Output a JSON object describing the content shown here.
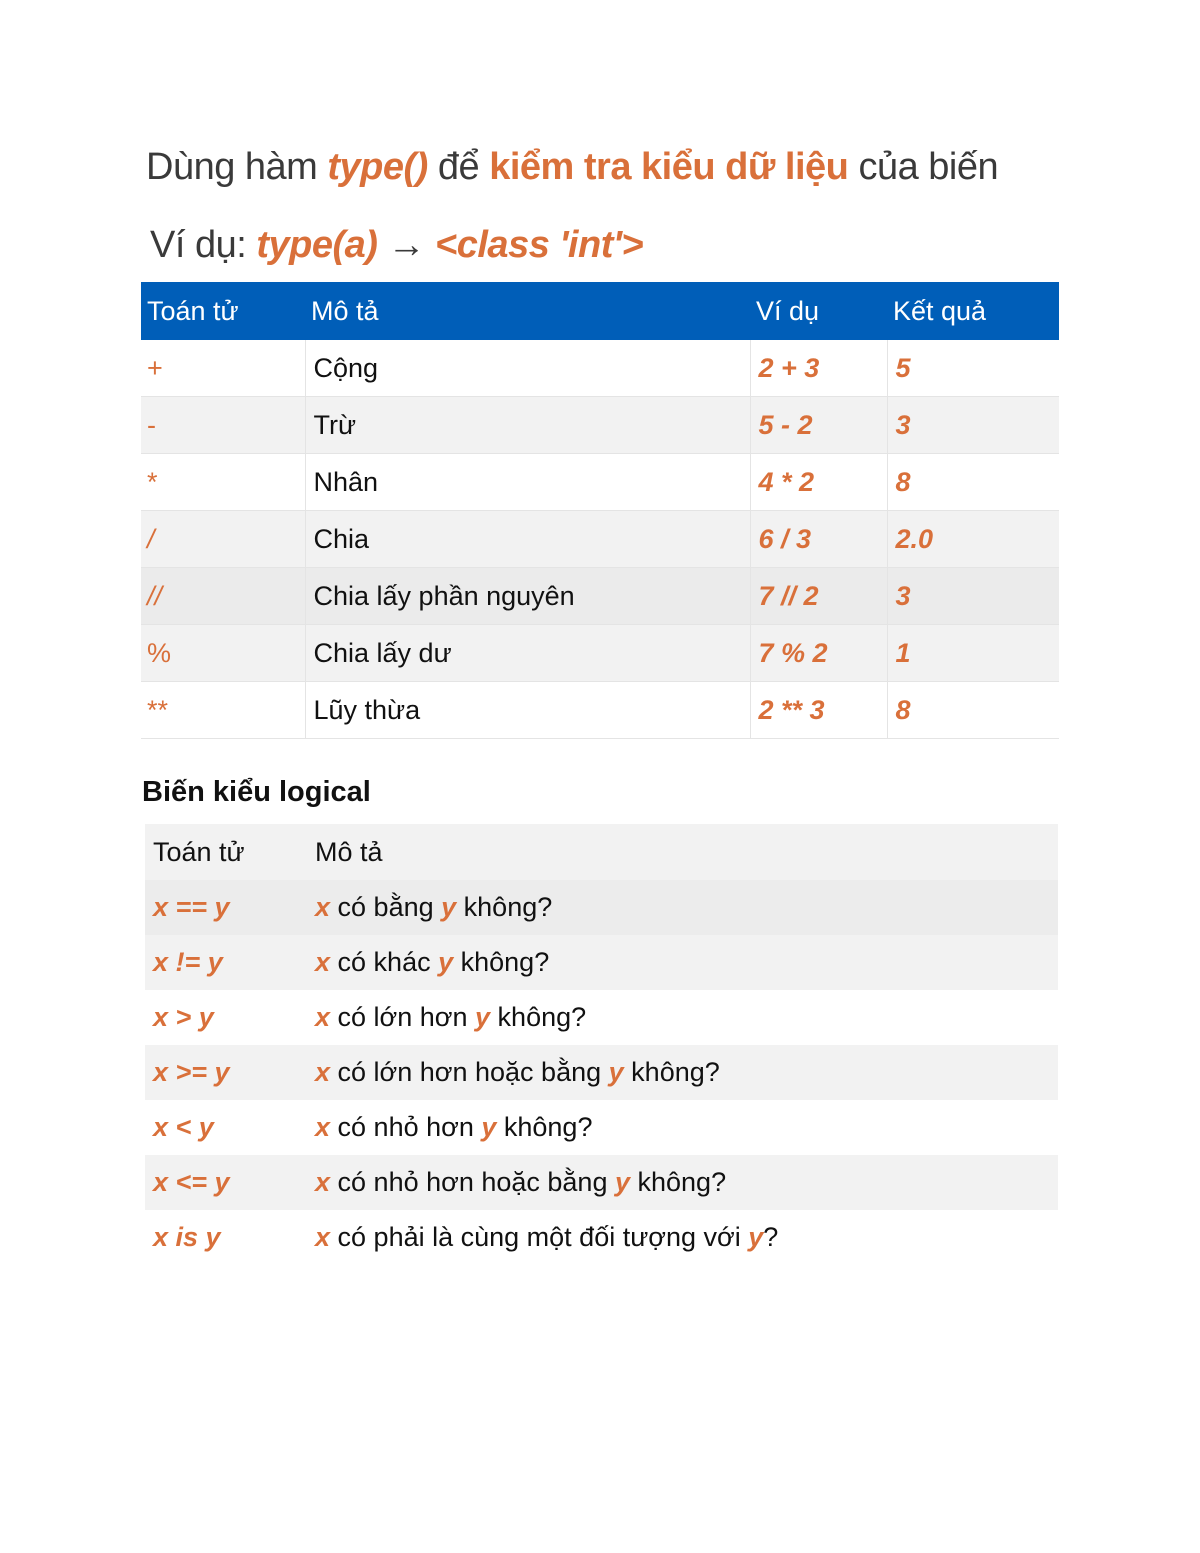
{
  "title": {
    "p1": "Dùng hàm ",
    "p2": "type()",
    "p3": " để ",
    "p4": "kiểm tra kiểu dữ liệu",
    "p5": " của biến"
  },
  "example": {
    "p1": "Ví dụ: ",
    "p2": "type(a)",
    "p3": " → ",
    "p4": "<class 'int'>"
  },
  "colors": {
    "accent": "#d9703a",
    "header_bg": "#005eb8",
    "row_alt": "#f2f2f2"
  },
  "arith_table": {
    "headers": [
      "Toán tử",
      "Mô tả",
      "Ví dụ",
      "Kết quả"
    ],
    "rows": [
      {
        "op": "+",
        "desc": "Cộng",
        "ex": "2 + 3",
        "res": "5"
      },
      {
        "op": "-",
        "desc": "Trừ",
        "ex": "5 - 2",
        "res": "3"
      },
      {
        "op": "*",
        "desc": "Nhân",
        "ex": "4 * 2",
        "res": "8"
      },
      {
        "op": "/",
        "desc": "Chia",
        "ex": "6 / 3",
        "res": "2.0"
      },
      {
        "op": "//",
        "desc": "Chia lấy phần nguyên",
        "ex": "7 // 2",
        "res": "3"
      },
      {
        "op": "%",
        "desc": "Chia lấy dư",
        "ex": "7 % 2",
        "res": "1"
      },
      {
        "op": "**",
        "desc": "Lũy thừa",
        "ex": "2 ** 3",
        "res": "8"
      }
    ]
  },
  "logical_section": {
    "heading": "Biến kiểu logical",
    "headers": [
      "Toán tử",
      "Mô tả"
    ],
    "rows": [
      {
        "op": "x == y",
        "desc": [
          {
            "t": "x",
            "hl": true
          },
          {
            "t": " có bằng "
          },
          {
            "t": "y",
            "hl": true
          },
          {
            "t": " không?"
          }
        ]
      },
      {
        "op": "x != y",
        "desc": [
          {
            "t": "x",
            "hl": true
          },
          {
            "t": " có khác "
          },
          {
            "t": "y",
            "hl": true
          },
          {
            "t": " không?"
          }
        ]
      },
      {
        "op": "x > y",
        "desc": [
          {
            "t": "x",
            "hl": true
          },
          {
            "t": " có lớn hơn "
          },
          {
            "t": "y",
            "hl": true
          },
          {
            "t": " không?"
          }
        ]
      },
      {
        "op": "x >= y",
        "desc": [
          {
            "t": "x",
            "hl": true
          },
          {
            "t": " có lớn hơn hoặc bằng "
          },
          {
            "t": "y",
            "hl": true
          },
          {
            "t": " không?"
          }
        ]
      },
      {
        "op": "x < y",
        "desc": [
          {
            "t": "x",
            "hl": true
          },
          {
            "t": " có nhỏ hơn "
          },
          {
            "t": "y",
            "hl": true
          },
          {
            "t": " không?"
          }
        ]
      },
      {
        "op": "x <= y",
        "desc": [
          {
            "t": "x",
            "hl": true
          },
          {
            "t": " có nhỏ hơn hoặc bằng "
          },
          {
            "t": "y",
            "hl": true
          },
          {
            "t": " không?"
          }
        ]
      },
      {
        "op": "x is y",
        "desc": [
          {
            "t": "x",
            "hl": true
          },
          {
            "t": " có phải là cùng một đối tượng với "
          },
          {
            "t": "y",
            "hl": true
          },
          {
            "t": "?"
          }
        ]
      }
    ]
  }
}
